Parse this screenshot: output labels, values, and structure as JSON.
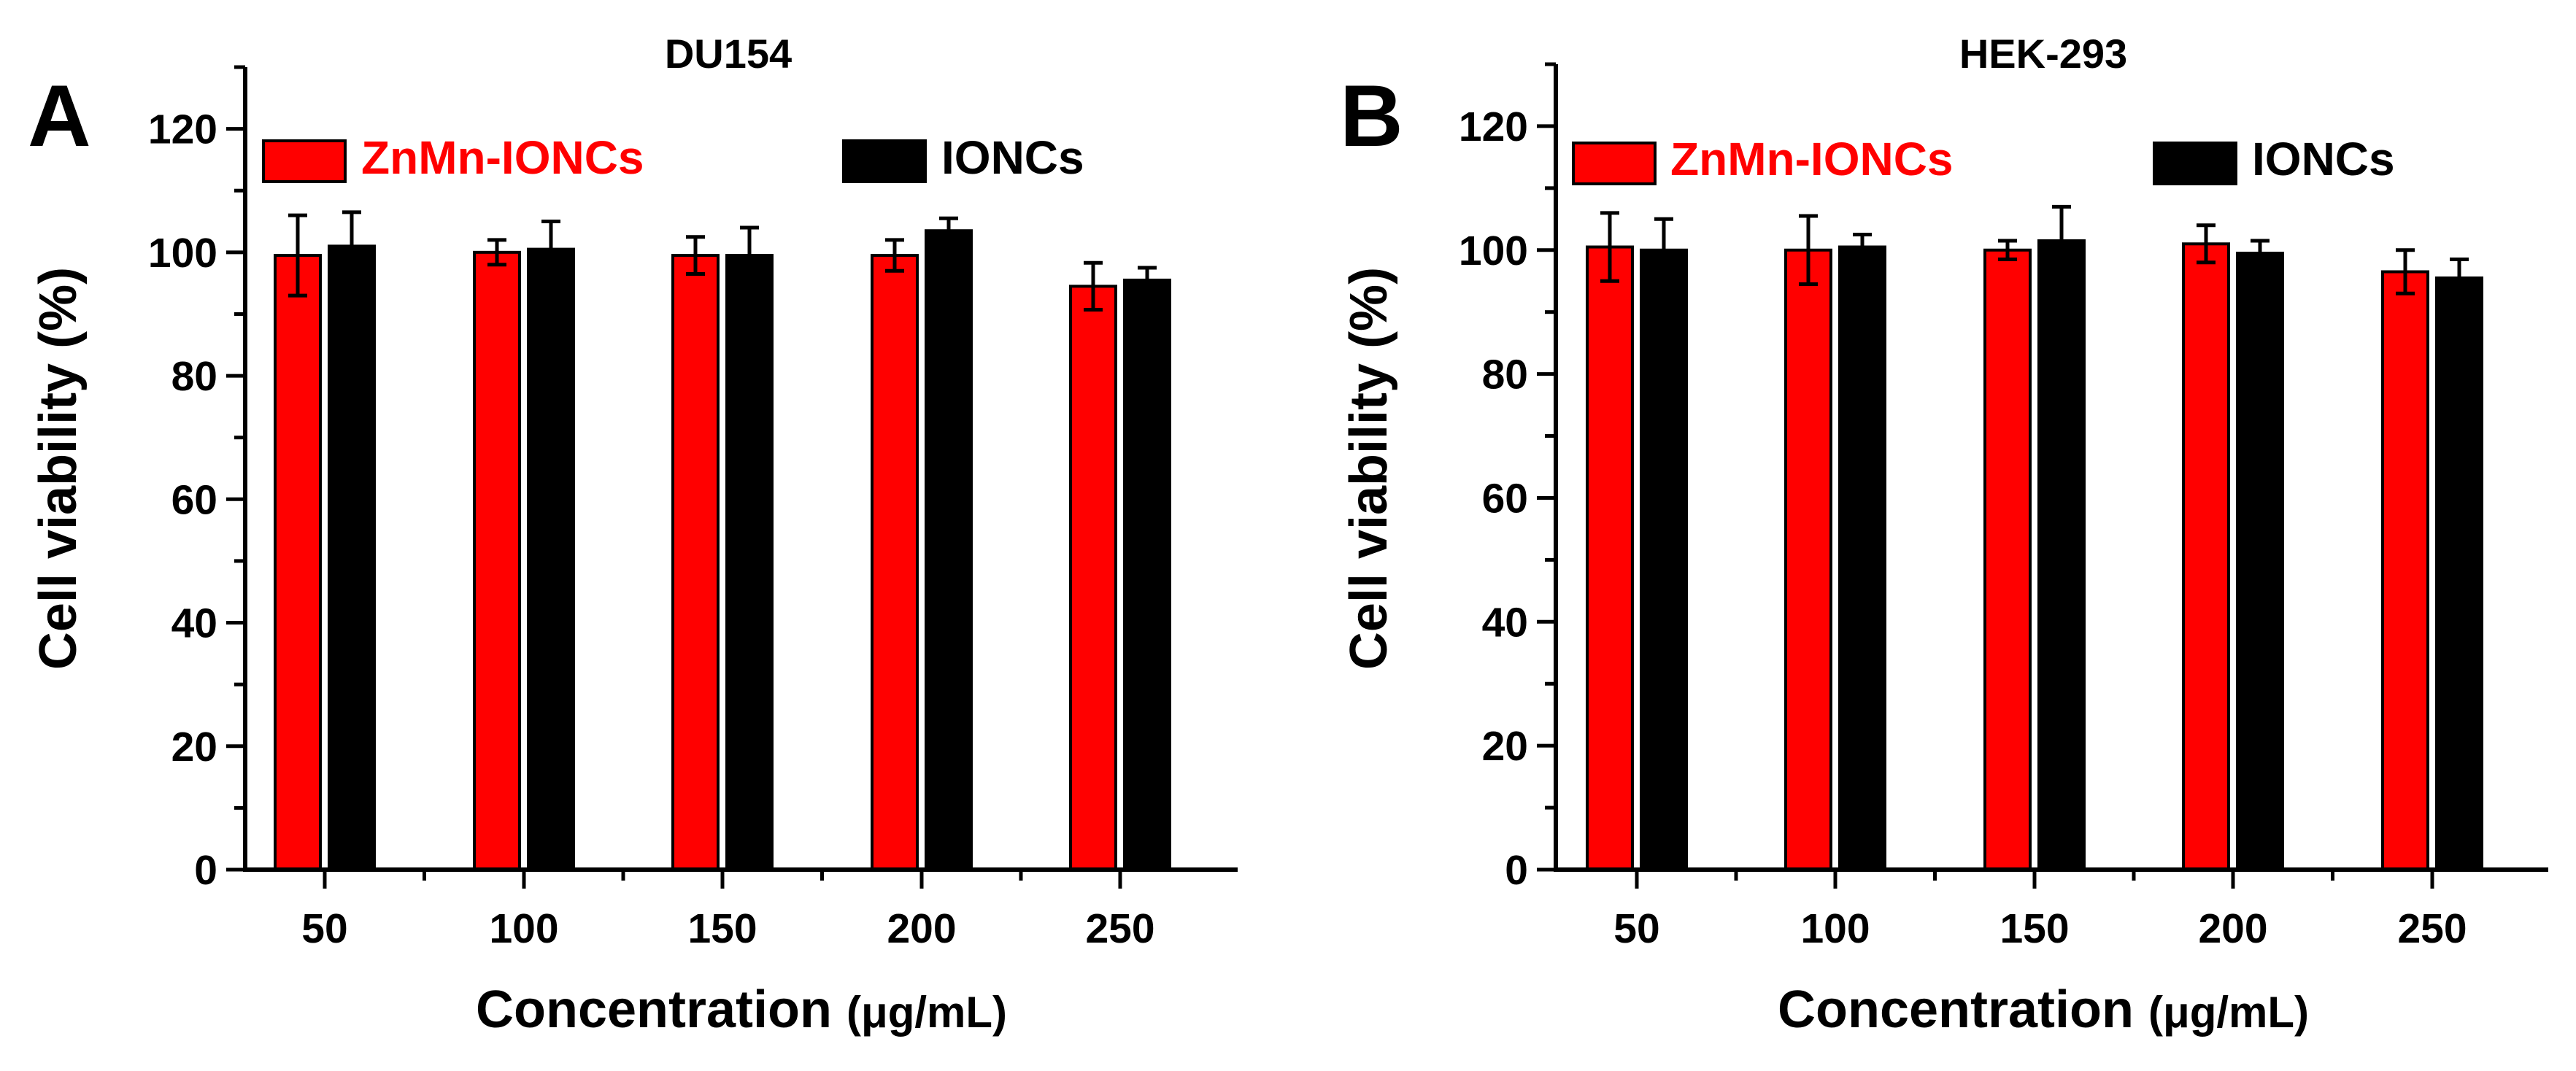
{
  "figure": {
    "panels": [
      {
        "label": "A"
      },
      {
        "label": "B"
      }
    ]
  },
  "chart_data": [
    {
      "type": "bar",
      "panel_label": "A",
      "title": "DU154",
      "xlabel": "Concentration",
      "xlabel_unit": "(μg/mL)",
      "ylabel": "Cell viability (%)",
      "ylim": [
        0,
        130
      ],
      "yticks": [
        0,
        20,
        40,
        60,
        80,
        100,
        120
      ],
      "categories": [
        "50",
        "100",
        "150",
        "200",
        "250"
      ],
      "series": [
        {
          "name": "ZnMn-IONCs",
          "color": "#ff0000",
          "values": [
            99.5,
            100.0,
            99.5,
            99.5,
            94.5
          ],
          "errors": [
            6.5,
            2.0,
            3.0,
            2.5,
            3.8
          ]
        },
        {
          "name": "IONCs",
          "color": "#000000",
          "values": [
            101.0,
            100.5,
            99.5,
            103.5,
            95.5
          ],
          "errors": [
            5.5,
            4.5,
            4.5,
            2.0,
            2.0
          ]
        }
      ],
      "legend": "top, horizontal"
    },
    {
      "type": "bar",
      "panel_label": "B",
      "title": "HEK-293",
      "xlabel": "Concentration",
      "xlabel_unit": "(μg/mL)",
      "ylabel": "Cell viability (%)",
      "ylim": [
        0,
        130
      ],
      "yticks": [
        0,
        20,
        40,
        60,
        80,
        100,
        120
      ],
      "categories": [
        "50",
        "100",
        "150",
        "200",
        "250"
      ],
      "series": [
        {
          "name": "ZnMn-IONCs",
          "color": "#ff0000",
          "values": [
            100.5,
            100.0,
            100.0,
            101.0,
            96.5
          ],
          "errors": [
            5.5,
            5.5,
            1.5,
            3.0,
            3.5
          ]
        },
        {
          "name": "IONCs",
          "color": "#000000",
          "values": [
            100.0,
            100.5,
            101.5,
            99.5,
            95.5
          ],
          "errors": [
            5.0,
            2.0,
            5.5,
            2.0,
            3.0
          ]
        }
      ],
      "legend": "top, horizontal"
    }
  ]
}
